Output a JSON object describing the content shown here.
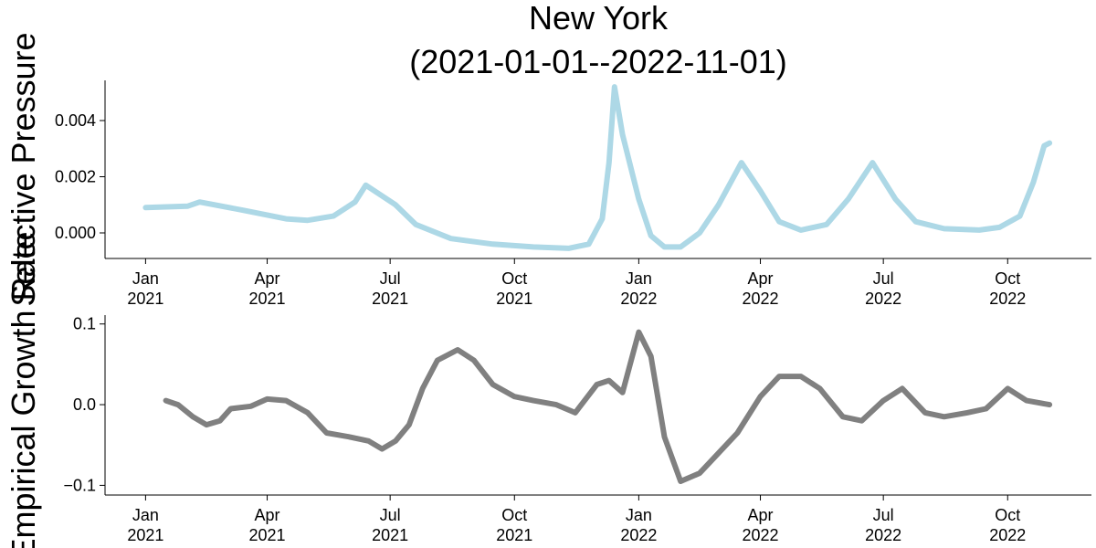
{
  "chart_data": [
    {
      "type": "line",
      "title": "New York",
      "subtitle": "(2021-01-01--2022-11-01)",
      "ylabel": "Selective Pressure",
      "x": [
        "2021-01-01",
        "2021-02-01",
        "2021-02-10",
        "2021-03-15",
        "2021-04-15",
        "2021-05-01",
        "2021-05-20",
        "2021-06-05",
        "2021-06-13",
        "2021-07-05",
        "2021-07-20",
        "2021-08-15",
        "2021-09-15",
        "2021-10-15",
        "2021-11-10",
        "2021-11-25",
        "2021-12-05",
        "2021-12-10",
        "2021-12-14",
        "2021-12-20",
        "2022-01-01",
        "2022-01-10",
        "2022-01-20",
        "2022-02-01",
        "2022-02-15",
        "2022-03-01",
        "2022-03-18",
        "2022-04-01",
        "2022-04-15",
        "2022-05-01",
        "2022-05-20",
        "2022-06-05",
        "2022-06-23",
        "2022-07-10",
        "2022-07-25",
        "2022-08-15",
        "2022-09-10",
        "2022-09-25",
        "2022-10-10",
        "2022-10-20",
        "2022-10-28",
        "2022-11-01"
      ],
      "series": [
        {
          "color": "#add8e6",
          "values": [
            0.0009,
            0.00095,
            0.0011,
            0.0008,
            0.0005,
            0.00045,
            0.0006,
            0.0011,
            0.0017,
            0.001,
            0.0003,
            -0.0002,
            -0.0004,
            -0.0005,
            -0.00055,
            -0.0004,
            0.0005,
            0.0025,
            0.0052,
            0.0035,
            0.0012,
            -0.0001,
            -0.0005,
            -0.0005,
            0.0,
            0.001,
            0.0025,
            0.0015,
            0.0004,
            0.0001,
            0.0003,
            0.0012,
            0.0025,
            0.0012,
            0.0004,
            0.00015,
            0.0001,
            0.0002,
            0.0006,
            0.0018,
            0.0031,
            0.0032
          ]
        }
      ],
      "ylim": [
        -0.00091,
        0.00543
      ],
      "yticks": [
        {
          "value": 0,
          "label": "0.000"
        },
        {
          "value": 0.002,
          "label": "0.002"
        },
        {
          "value": 0.004,
          "label": "0.004"
        }
      ],
      "xlim": [
        "2020-12-02",
        "2022-12-02"
      ],
      "xticks": [
        {
          "value": "2021-01-01",
          "label": "Jan\n2021"
        },
        {
          "value": "2021-04-01",
          "label": "Apr\n2021"
        },
        {
          "value": "2021-07-01",
          "label": "Jul\n2021"
        },
        {
          "value": "2021-10-01",
          "label": "Oct\n2021"
        },
        {
          "value": "2022-01-01",
          "label": "Jan\n2022"
        },
        {
          "value": "2022-04-01",
          "label": "Apr\n2022"
        },
        {
          "value": "2022-07-01",
          "label": "Jul\n2022"
        },
        {
          "value": "2022-10-01",
          "label": "Oct\n2022"
        }
      ]
    },
    {
      "type": "line",
      "ylabel": "Empirical Growth Rate",
      "x": [
        "2021-01-16",
        "2021-01-25",
        "2021-02-05",
        "2021-02-15",
        "2021-02-25",
        "2021-03-05",
        "2021-03-20",
        "2021-04-01",
        "2021-04-15",
        "2021-05-01",
        "2021-05-15",
        "2021-06-01",
        "2021-06-15",
        "2021-06-25",
        "2021-07-05",
        "2021-07-15",
        "2021-07-25",
        "2021-08-05",
        "2021-08-20",
        "2021-09-01",
        "2021-09-15",
        "2021-10-01",
        "2021-10-15",
        "2021-11-01",
        "2021-11-15",
        "2021-12-01",
        "2021-12-10",
        "2021-12-20",
        "2022-01-01",
        "2022-01-10",
        "2022-01-20",
        "2022-02-01",
        "2022-02-15",
        "2022-03-01",
        "2022-03-15",
        "2022-04-01",
        "2022-04-15",
        "2022-05-01",
        "2022-05-15",
        "2022-06-01",
        "2022-06-15",
        "2022-07-01",
        "2022-07-15",
        "2022-08-01",
        "2022-08-15",
        "2022-09-01",
        "2022-09-15",
        "2022-10-01",
        "2022-10-15",
        "2022-11-01"
      ],
      "series": [
        {
          "color": "#808080",
          "values": [
            0.005,
            0.0,
            -0.015,
            -0.025,
            -0.02,
            -0.005,
            -0.002,
            0.007,
            0.005,
            -0.01,
            -0.035,
            -0.04,
            -0.045,
            -0.055,
            -0.045,
            -0.025,
            0.02,
            0.055,
            0.068,
            0.055,
            0.025,
            0.01,
            0.005,
            0.0,
            -0.01,
            0.025,
            0.03,
            0.015,
            0.09,
            0.06,
            -0.04,
            -0.095,
            -0.085,
            -0.06,
            -0.035,
            0.01,
            0.035,
            0.035,
            0.02,
            -0.015,
            -0.02,
            0.005,
            0.02,
            -0.01,
            -0.015,
            -0.01,
            -0.005,
            0.02,
            0.005,
            0.0
          ]
        }
      ],
      "ylim": [
        -0.112,
        0.111
      ],
      "yticks": [
        {
          "value": -0.1,
          "label": "−0.1"
        },
        {
          "value": 0,
          "label": "0.0"
        },
        {
          "value": 0.1,
          "label": "0.1"
        }
      ],
      "xlim": [
        "2020-12-02",
        "2022-12-02"
      ],
      "xticks": [
        {
          "value": "2021-01-01",
          "label": "Jan\n2021"
        },
        {
          "value": "2021-04-01",
          "label": "Apr\n2021"
        },
        {
          "value": "2021-07-01",
          "label": "Jul\n2021"
        },
        {
          "value": "2021-10-01",
          "label": "Oct\n2021"
        },
        {
          "value": "2022-01-01",
          "label": "Jan\n2022"
        },
        {
          "value": "2022-04-01",
          "label": "Apr\n2022"
        },
        {
          "value": "2022-07-01",
          "label": "Jul\n2022"
        },
        {
          "value": "2022-10-01",
          "label": "Oct\n2022"
        }
      ]
    }
  ]
}
